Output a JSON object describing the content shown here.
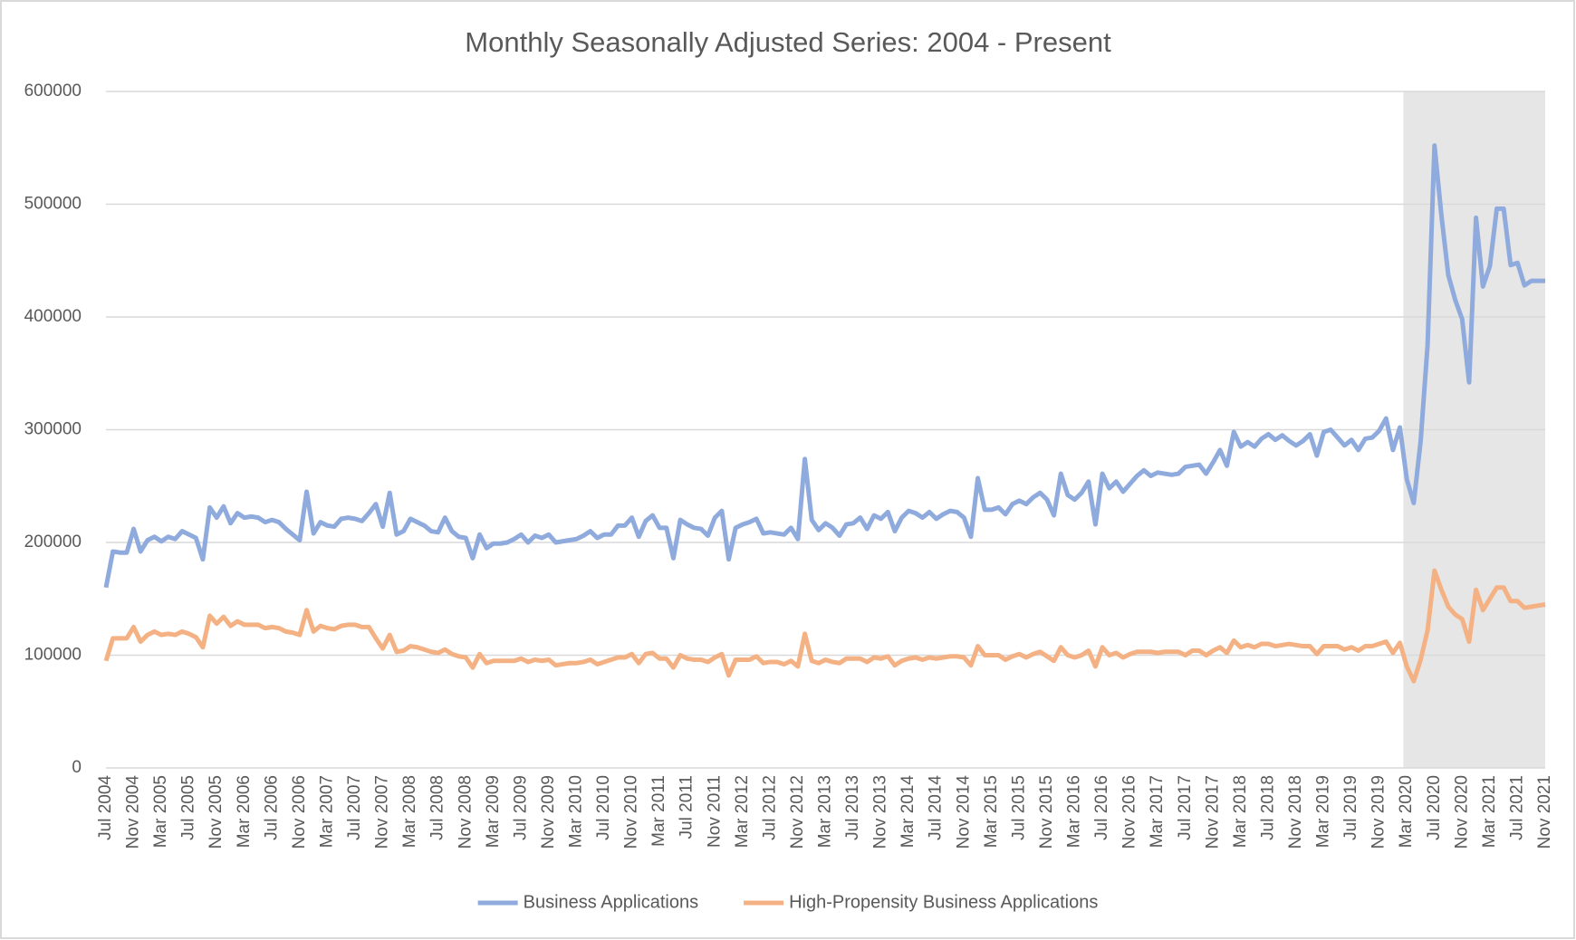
{
  "chart_data": {
    "type": "line",
    "title": "Monthly Seasonally Adjusted Series: 2004 - Present",
    "categories": [
      "Jul 2004",
      null,
      null,
      null,
      "Nov 2004",
      null,
      null,
      null,
      "Mar 2005",
      null,
      null,
      null,
      "Jul 2005",
      null,
      null,
      null,
      "Nov 2005",
      null,
      null,
      null,
      "Mar 2006",
      null,
      null,
      null,
      "Jul 2006",
      null,
      null,
      null,
      "Nov 2006",
      null,
      null,
      null,
      "Mar 2007",
      null,
      null,
      null,
      "Jul 2007",
      null,
      null,
      null,
      "Nov 2007",
      null,
      null,
      null,
      "Mar 2008",
      null,
      null,
      null,
      "Jul 2008",
      null,
      null,
      null,
      "Nov 2008",
      null,
      null,
      null,
      "Mar 2009",
      null,
      null,
      null,
      "Jul 2009",
      null,
      null,
      null,
      "Nov 2009",
      null,
      null,
      null,
      "Mar 2010",
      null,
      null,
      null,
      "Jul 2010",
      null,
      null,
      null,
      "Nov 2010",
      null,
      null,
      null,
      "Mar 2011",
      null,
      null,
      null,
      "Jul 2011",
      null,
      null,
      null,
      "Nov 2011",
      null,
      null,
      null,
      "Mar 2012",
      null,
      null,
      null,
      "Jul 2012",
      null,
      null,
      null,
      "Nov 2012",
      null,
      null,
      null,
      "Mar 2013",
      null,
      null,
      null,
      "Jul 2013",
      null,
      null,
      null,
      "Nov 2013",
      null,
      null,
      null,
      "Mar 2014",
      null,
      null,
      null,
      "Jul 2014",
      null,
      null,
      null,
      "Nov 2014",
      null,
      null,
      null,
      "Mar 2015",
      null,
      null,
      null,
      "Jul 2015",
      null,
      null,
      null,
      "Nov 2015",
      null,
      null,
      null,
      "Mar 2016",
      null,
      null,
      null,
      "Jul 2016",
      null,
      null,
      null,
      "Nov 2016",
      null,
      null,
      null,
      "Mar 2017",
      null,
      null,
      null,
      "Jul 2017",
      null,
      null,
      null,
      "Nov 2017",
      null,
      null,
      null,
      "Mar 2018",
      null,
      null,
      null,
      "Jul 2018",
      null,
      null,
      null,
      "Nov 2018",
      null,
      null,
      null,
      "Mar 2019",
      null,
      null,
      null,
      "Jul 2019",
      null,
      null,
      null,
      "Nov 2019",
      null,
      null,
      null,
      "Mar 2020",
      null,
      null,
      null,
      "Jul 2020",
      null,
      null,
      null,
      "Nov 2020",
      null,
      null,
      null,
      "Mar 2021",
      null,
      null,
      null,
      "Jul 2021",
      null,
      null,
      null,
      "Nov 2021"
    ],
    "series": [
      {
        "name": "Business Applications",
        "color": "#8faadc",
        "values": [
          160000,
          192000,
          191000,
          191000,
          212000,
          192000,
          202000,
          205000,
          201000,
          205000,
          203000,
          210000,
          207000,
          204000,
          185000,
          231000,
          222000,
          232000,
          217000,
          226000,
          222000,
          223000,
          222000,
          218000,
          220000,
          218000,
          212000,
          207000,
          202000,
          245000,
          208000,
          218000,
          215000,
          214000,
          221000,
          222000,
          221000,
          219000,
          226000,
          234000,
          214000,
          244000,
          207000,
          210000,
          221000,
          218000,
          215000,
          210000,
          209000,
          222000,
          210000,
          205000,
          204000,
          186000,
          207000,
          195000,
          199000,
          199000,
          200000,
          203000,
          207000,
          200000,
          206000,
          204000,
          207000,
          200000,
          201000,
          202000,
          203000,
          206000,
          210000,
          204000,
          207000,
          207000,
          215000,
          215000,
          222000,
          205000,
          219000,
          224000,
          213000,
          213000,
          186000,
          220000,
          216000,
          213000,
          212000,
          206000,
          222000,
          228000,
          185000,
          213000,
          216000,
          218000,
          221000,
          208000,
          209000,
          208000,
          207000,
          213000,
          203000,
          274000,
          220000,
          211000,
          217000,
          213000,
          206000,
          216000,
          217000,
          222000,
          212000,
          224000,
          221000,
          227000,
          210000,
          222000,
          228000,
          226000,
          222000,
          227000,
          221000,
          225000,
          228000,
          227000,
          222000,
          205000,
          257000,
          229000,
          229000,
          231000,
          225000,
          234000,
          237000,
          234000,
          240000,
          244000,
          238000,
          224000,
          261000,
          242000,
          238000,
          244000,
          254000,
          216000,
          261000,
          248000,
          254000,
          245000,
          252000,
          259000,
          264000,
          259000,
          262000,
          261000,
          260000,
          261000,
          267000,
          268000,
          269000,
          261000,
          271000,
          282000,
          268000,
          298000,
          285000,
          289000,
          285000,
          292000,
          296000,
          291000,
          295000,
          290000,
          286000,
          290000,
          296000,
          277000,
          298000,
          300000,
          293000,
          286000,
          291000,
          282000,
          292000,
          293000,
          299000,
          310000,
          282000,
          302000,
          256000,
          235000,
          290000,
          375000,
          552000,
          490000,
          437000,
          415000,
          398000,
          342000,
          488000,
          427000,
          445000,
          496000,
          496000,
          446000,
          448000,
          428000,
          432000,
          432000,
          432000
        ]
      },
      {
        "name": "High-Propensity Business Applications",
        "color": "#f4b183",
        "values": [
          95000,
          115000,
          115000,
          115000,
          125000,
          112000,
          118000,
          121000,
          118000,
          119000,
          118000,
          121000,
          119000,
          116000,
          107000,
          135000,
          128000,
          134000,
          126000,
          130000,
          127000,
          127000,
          127000,
          124000,
          125000,
          124000,
          121000,
          120000,
          118000,
          140000,
          121000,
          126000,
          124000,
          123000,
          126000,
          127000,
          127000,
          125000,
          125000,
          115000,
          106000,
          118000,
          103000,
          104000,
          108000,
          107000,
          105000,
          103000,
          102000,
          105000,
          101000,
          99000,
          98000,
          89000,
          101000,
          93000,
          95000,
          95000,
          95000,
          95000,
          97000,
          94000,
          96000,
          95000,
          96000,
          91000,
          92000,
          93000,
          93000,
          94000,
          96000,
          92000,
          94000,
          96000,
          98000,
          98000,
          101000,
          93000,
          101000,
          102000,
          97000,
          97000,
          89000,
          100000,
          97000,
          96000,
          96000,
          94000,
          98000,
          101000,
          82000,
          96000,
          96000,
          96000,
          99000,
          93000,
          94000,
          94000,
          92000,
          95000,
          90000,
          119000,
          95000,
          93000,
          96000,
          94000,
          93000,
          97000,
          97000,
          97000,
          94000,
          98000,
          97000,
          99000,
          91000,
          95000,
          97000,
          98000,
          96000,
          98000,
          97000,
          98000,
          99000,
          99000,
          98000,
          91000,
          108000,
          100000,
          100000,
          100000,
          96000,
          99000,
          101000,
          98000,
          101000,
          103000,
          99000,
          95000,
          107000,
          100000,
          98000,
          100000,
          104000,
          90000,
          107000,
          100000,
          102000,
          98000,
          101000,
          103000,
          103000,
          103000,
          102000,
          103000,
          103000,
          103000,
          100000,
          104000,
          104000,
          100000,
          104000,
          107000,
          102000,
          113000,
          107000,
          109000,
          107000,
          110000,
          110000,
          108000,
          109000,
          110000,
          109000,
          108000,
          108000,
          101000,
          108000,
          108000,
          108000,
          105000,
          107000,
          104000,
          108000,
          108000,
          110000,
          112000,
          102000,
          111000,
          90000,
          77000,
          96000,
          122000,
          175000,
          158000,
          143000,
          136000,
          132000,
          112000,
          158000,
          140000,
          150000,
          160000,
          160000,
          148000,
          148000,
          142000,
          143000,
          144000,
          145000
        ]
      }
    ],
    "ylim": [
      0,
      600000
    ],
    "yticks": [
      0,
      100000,
      200000,
      300000,
      400000,
      500000,
      600000
    ],
    "grid": true,
    "legend": "bottom",
    "shaded_from": "Mar 2020",
    "shaded_to": "Nov 2021",
    "shade_color": "#e7e6e6"
  }
}
